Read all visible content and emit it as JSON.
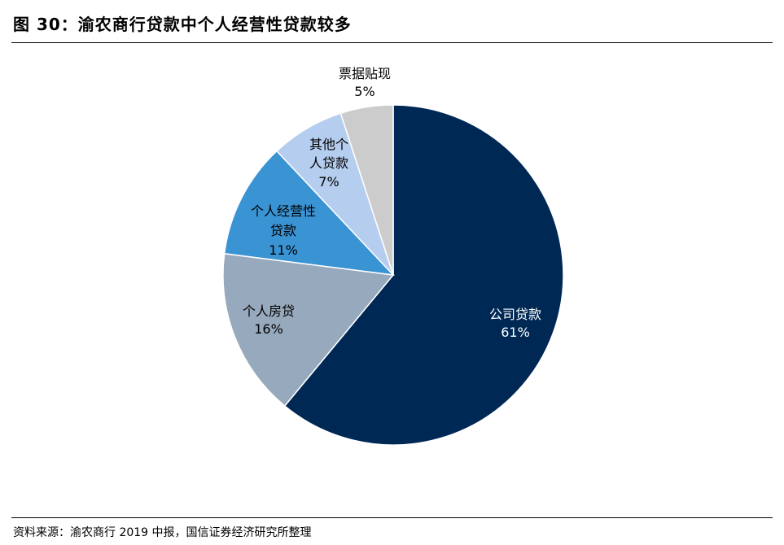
{
  "header": {
    "title": "图 30：渝农商行贷款中个人经营性贷款较多"
  },
  "chart_data": {
    "type": "pie",
    "title": "图 30：渝农商行贷款中个人经营性贷款较多",
    "slices": [
      {
        "label": "公司贷款",
        "value": 61,
        "value_label": "61%",
        "color": "#002855"
      },
      {
        "label": "个人房贷",
        "value": 16,
        "value_label": "16%",
        "color": "#97a9bc"
      },
      {
        "label": "个人经营性贷款",
        "value": 11,
        "value_label": "11%",
        "color": "#3a93d3"
      },
      {
        "label": "其他个人贷款",
        "value": 7,
        "value_label": "7%",
        "color": "#b5cdee"
      },
      {
        "label": "票据贴现",
        "value": 5,
        "value_label": "5%",
        "color": "#cccccc"
      }
    ],
    "start": "12 o'clock",
    "direction": "clockwise",
    "legend": "none",
    "data_labels": "inside / outside slices, category name and percentage"
  },
  "footer": {
    "source": "资料来源：渝农商行 2019 中报，国信证券经济研究所整理"
  }
}
